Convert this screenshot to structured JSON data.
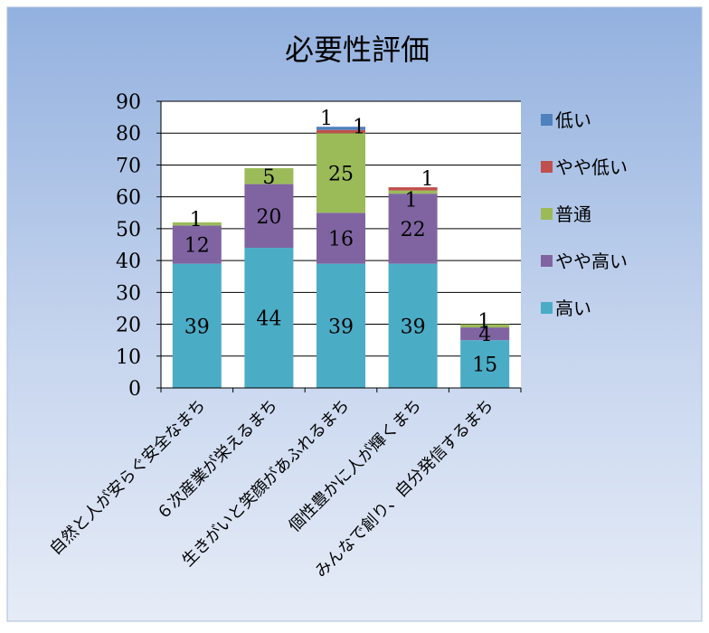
{
  "chart_data": {
    "type": "bar",
    "stacked": true,
    "title": "必要性評価",
    "categories": [
      "自然と人が安らぐ安全なまち",
      "６次産業が栄えるまち",
      "生きがいと笑顔があふれるまち",
      "個性豊かに人が輝くまち",
      "みんなで創り、自分発信するまち"
    ],
    "series": [
      {
        "name": "高い",
        "color": "#4BACC6",
        "values": [
          39,
          44,
          39,
          39,
          15
        ]
      },
      {
        "name": "やや高い",
        "color": "#8064A2",
        "values": [
          12,
          20,
          16,
          22,
          4
        ]
      },
      {
        "name": "普通",
        "color": "#9BBB59",
        "values": [
          1,
          5,
          25,
          1,
          1
        ]
      },
      {
        "name": "やや低い",
        "color": "#C0504D",
        "values": [
          0,
          0,
          1,
          1,
          0
        ]
      },
      {
        "name": "低い",
        "color": "#4F81BD",
        "values": [
          0,
          0,
          1,
          0,
          0
        ]
      }
    ],
    "ylim": [
      0,
      90
    ],
    "yticks": [
      0,
      10,
      20,
      30,
      40,
      50,
      60,
      70,
      80,
      90
    ],
    "grid": true,
    "legend_position": "right",
    "legend_order": [
      "低い",
      "やや低い",
      "普通",
      "やや高い",
      "高い"
    ]
  }
}
